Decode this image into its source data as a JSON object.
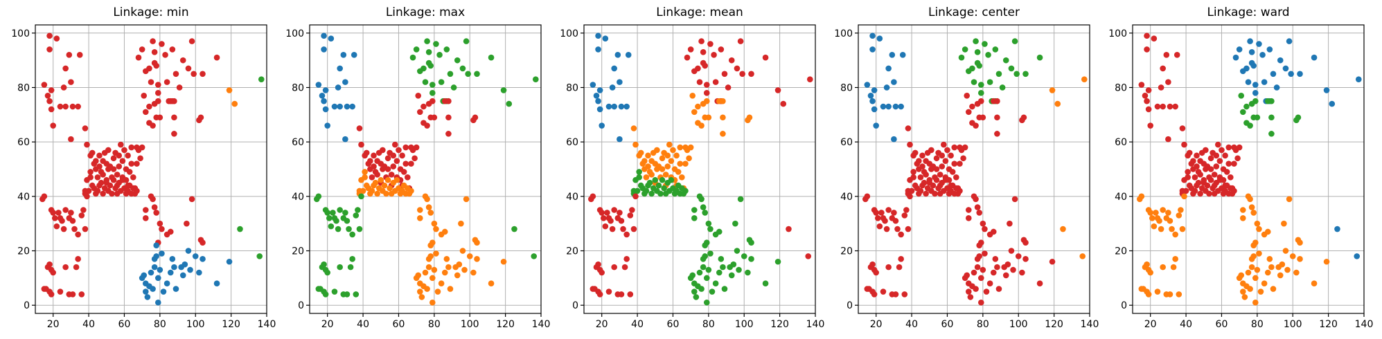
{
  "chart_data": [
    {
      "type": "scatter",
      "title": "Linkage: min",
      "xlim": [
        10,
        140
      ],
      "ylim": [
        -3,
        103
      ],
      "xticks": [
        20,
        40,
        60,
        80,
        100,
        120,
        140
      ],
      "yticks": [
        0,
        20,
        40,
        60,
        80,
        100
      ],
      "grid": true,
      "colors": [
        "#d62728",
        "#d62728",
        "#d62728",
        "#d62728",
        "#d62728",
        "#d62728",
        "#d62728",
        "#d62728",
        "#1f77b4",
        "#ff7f0e",
        "#2ca02c"
      ]
    },
    {
      "type": "scatter",
      "title": "Linkage: max",
      "xlim": [
        10,
        140
      ],
      "ylim": [
        -3,
        103
      ],
      "xticks": [
        20,
        40,
        60,
        80,
        100,
        120,
        140
      ],
      "yticks": [
        0,
        20,
        40,
        60,
        80,
        100
      ],
      "grid": true,
      "colors": [
        "#1f77b4",
        "#2ca02c",
        "#d62728",
        "#d62728",
        "#ff7f0e",
        "#2ca02c",
        "#2ca02c",
        "#ff7f0e",
        "#ff7f0e",
        "#2ca02c",
        "#2ca02c"
      ]
    },
    {
      "type": "scatter",
      "title": "Linkage: mean",
      "xlim": [
        10,
        140
      ],
      "ylim": [
        -3,
        103
      ],
      "xticks": [
        20,
        40,
        60,
        80,
        100,
        120,
        140
      ],
      "yticks": [
        0,
        20,
        40,
        60,
        80,
        100
      ],
      "grid": true,
      "colors": [
        "#1f77b4",
        "#d62728",
        "#ff7f0e",
        "#ff7f0e",
        "#2ca02c",
        "#d62728",
        "#d62728",
        "#2ca02c",
        "#2ca02c",
        "#d62728",
        "#d62728"
      ]
    },
    {
      "type": "scatter",
      "title": "Linkage: center",
      "xlim": [
        10,
        140
      ],
      "ylim": [
        -3,
        103
      ],
      "xticks": [
        20,
        40,
        60,
        80,
        100,
        120,
        140
      ],
      "yticks": [
        0,
        20,
        40,
        60,
        80,
        100
      ],
      "grid": true,
      "colors": [
        "#1f77b4",
        "#2ca02c",
        "#d62728",
        "#d62728",
        "#d62728",
        "#d62728",
        "#d62728",
        "#d62728",
        "#d62728",
        "#ff7f0e",
        "#ff7f0e"
      ]
    },
    {
      "type": "scatter",
      "title": "Linkage: ward",
      "xlim": [
        10,
        140
      ],
      "ylim": [
        -3,
        103
      ],
      "xticks": [
        20,
        40,
        60,
        80,
        100,
        120,
        140
      ],
      "yticks": [
        0,
        20,
        40,
        60,
        80,
        100
      ],
      "grid": true,
      "colors": [
        "#d62728",
        "#1f77b4",
        "#2ca02c",
        "#d62728",
        "#d62728",
        "#ff7f0e",
        "#ff7f0e",
        "#ff7f0e",
        "#ff7f0e",
        "#1f77b4",
        "#1f77b4"
      ]
    }
  ],
  "points": [
    {
      "g": 0,
      "xy": [
        [
          15,
          81
        ],
        [
          18,
          99
        ],
        [
          18,
          94
        ],
        [
          17,
          77
        ],
        [
          19,
          79
        ],
        [
          18,
          75
        ],
        [
          19,
          72
        ],
        [
          20,
          66
        ],
        [
          22,
          98
        ],
        [
          24,
          73
        ],
        [
          26,
          80
        ],
        [
          27,
          87
        ],
        [
          27,
          73
        ],
        [
          29,
          92
        ],
        [
          30,
          82
        ],
        [
          30,
          61
        ],
        [
          31,
          73
        ],
        [
          34,
          73
        ],
        [
          35,
          92
        ]
      ]
    },
    {
      "g": 1,
      "xy": [
        [
          68,
          91
        ],
        [
          70,
          94
        ],
        [
          72,
          86
        ],
        [
          74,
          87
        ],
        [
          75,
          82
        ],
        [
          76,
          97
        ],
        [
          77,
          93
        ],
        [
          77,
          89
        ],
        [
          78,
          88
        ],
        [
          79,
          81
        ],
        [
          79,
          78
        ],
        [
          81,
          96
        ],
        [
          83,
          92
        ],
        [
          84,
          82
        ],
        [
          85,
          75
        ],
        [
          87,
          75
        ],
        [
          87,
          94
        ],
        [
          89,
          85
        ],
        [
          91,
          80
        ],
        [
          93,
          90
        ],
        [
          96,
          87
        ],
        [
          98,
          97
        ],
        [
          99,
          85
        ],
        [
          104,
          85
        ],
        [
          112,
          91
        ]
      ]
    },
    {
      "g": 2,
      "xy": [
        [
          71,
          77
        ],
        [
          72,
          71
        ],
        [
          74,
          73
        ],
        [
          74,
          67
        ],
        [
          76,
          66
        ],
        [
          77,
          74
        ],
        [
          78,
          69
        ],
        [
          79,
          75
        ],
        [
          80,
          69
        ],
        [
          86,
          75
        ],
        [
          88,
          75
        ],
        [
          88,
          69
        ],
        [
          88,
          63
        ],
        [
          102,
          68
        ],
        [
          103,
          69
        ]
      ]
    },
    {
      "g": 3,
      "xy": [
        [
          38,
          65
        ],
        [
          39,
          59
        ],
        [
          41,
          55
        ],
        [
          42,
          56
        ],
        [
          43,
          52
        ],
        [
          44,
          53
        ],
        [
          44,
          50
        ],
        [
          45,
          47
        ],
        [
          46,
          55
        ],
        [
          46,
          51
        ],
        [
          47,
          49
        ],
        [
          48,
          53
        ],
        [
          48,
          48
        ],
        [
          49,
          56
        ],
        [
          50,
          52
        ],
        [
          50,
          45
        ],
        [
          51,
          50
        ],
        [
          51,
          57
        ],
        [
          52,
          51
        ],
        [
          53,
          47
        ],
        [
          54,
          54
        ],
        [
          54,
          50
        ],
        [
          55,
          56
        ],
        [
          56,
          48
        ],
        [
          56,
          44
        ],
        [
          57,
          55
        ],
        [
          57,
          51
        ],
        [
          58,
          59
        ],
        [
          59,
          53
        ],
        [
          59,
          47
        ],
        [
          60,
          57
        ],
        [
          61,
          50
        ],
        [
          61,
          46
        ],
        [
          62,
          55
        ],
        [
          62,
          44
        ],
        [
          63,
          49
        ],
        [
          64,
          58
        ],
        [
          64,
          52
        ],
        [
          65,
          47
        ],
        [
          66,
          43
        ],
        [
          67,
          58
        ],
        [
          67,
          52
        ],
        [
          68,
          57
        ],
        [
          69,
          54
        ],
        [
          70,
          58
        ]
      ]
    },
    {
      "g": 4,
      "xy": [
        [
          38,
          41
        ],
        [
          38,
          42
        ],
        [
          39,
          46
        ],
        [
          40,
          42
        ],
        [
          41,
          49
        ],
        [
          41,
          47
        ],
        [
          42,
          44
        ],
        [
          43,
          43
        ],
        [
          44,
          41
        ],
        [
          45,
          42
        ],
        [
          46,
          44
        ],
        [
          47,
          45
        ],
        [
          48,
          41
        ],
        [
          49,
          43
        ],
        [
          50,
          46
        ],
        [
          51,
          42
        ],
        [
          52,
          44
        ],
        [
          53,
          41
        ],
        [
          54,
          46
        ],
        [
          55,
          43
        ],
        [
          56,
          41
        ],
        [
          57,
          45
        ],
        [
          58,
          42
        ],
        [
          59,
          46
        ],
        [
          60,
          43
        ],
        [
          61,
          41
        ],
        [
          62,
          42
        ],
        [
          63,
          44
        ],
        [
          64,
          41
        ],
        [
          65,
          43
        ],
        [
          66,
          41
        ],
        [
          67,
          42
        ]
      ]
    },
    {
      "g": 5,
      "xy": [
        [
          14,
          39
        ],
        [
          15,
          40
        ],
        [
          19,
          35
        ],
        [
          20,
          34
        ],
        [
          21,
          32
        ],
        [
          22,
          29
        ],
        [
          23,
          34
        ],
        [
          24,
          32
        ],
        [
          25,
          31
        ],
        [
          26,
          28
        ],
        [
          27,
          35
        ],
        [
          29,
          32
        ],
        [
          30,
          34
        ],
        [
          31,
          31
        ],
        [
          32,
          28
        ],
        [
          34,
          26
        ],
        [
          36,
          33
        ],
        [
          37,
          35
        ],
        [
          38,
          28
        ],
        [
          39,
          40
        ]
      ]
    },
    {
      "g": 6,
      "xy": [
        [
          15,
          6
        ],
        [
          16,
          6
        ],
        [
          17,
          14
        ],
        [
          18,
          15
        ],
        [
          18,
          5
        ],
        [
          19,
          13
        ],
        [
          19,
          4
        ],
        [
          20,
          12
        ],
        [
          24,
          5
        ],
        [
          27,
          14
        ],
        [
          29,
          4
        ],
        [
          31,
          4
        ],
        [
          33,
          14
        ],
        [
          34,
          17
        ],
        [
          36,
          4
        ]
      ]
    },
    {
      "g": 7,
      "xy": [
        [
          72,
          35
        ],
        [
          72,
          32
        ],
        [
          75,
          40
        ],
        [
          76,
          39
        ],
        [
          77,
          36
        ],
        [
          78,
          34
        ],
        [
          79,
          23
        ],
        [
          80,
          30
        ],
        [
          81,
          28
        ],
        [
          84,
          26
        ],
        [
          86,
          27
        ],
        [
          95,
          30
        ],
        [
          98,
          39
        ],
        [
          103,
          24
        ],
        [
          104,
          23
        ]
      ]
    },
    {
      "g": 8,
      "xy": [
        [
          70,
          10
        ],
        [
          71,
          11
        ],
        [
          72,
          8
        ],
        [
          72,
          5
        ],
        [
          73,
          3
        ],
        [
          74,
          7
        ],
        [
          75,
          12
        ],
        [
          76,
          6
        ],
        [
          77,
          17
        ],
        [
          77,
          14
        ],
        [
          78,
          18
        ],
        [
          78,
          22
        ],
        [
          79,
          10
        ],
        [
          79,
          1
        ],
        [
          80,
          13
        ],
        [
          81,
          19
        ],
        [
          82,
          5
        ],
        [
          84,
          8
        ],
        [
          86,
          12
        ],
        [
          87,
          17
        ],
        [
          88,
          14
        ],
        [
          89,
          6
        ],
        [
          92,
          14
        ],
        [
          93,
          11
        ],
        [
          94,
          15
        ],
        [
          96,
          20
        ],
        [
          97,
          13
        ],
        [
          100,
          18
        ],
        [
          102,
          12
        ],
        [
          104,
          17
        ],
        [
          112,
          8
        ],
        [
          119,
          16
        ]
      ]
    },
    {
      "g": 9,
      "xy": [
        [
          119,
          79
        ],
        [
          122,
          74
        ]
      ]
    },
    {
      "g": 10,
      "xy": [
        [
          137,
          83
        ],
        [
          136,
          18
        ],
        [
          125,
          28
        ]
      ]
    }
  ]
}
